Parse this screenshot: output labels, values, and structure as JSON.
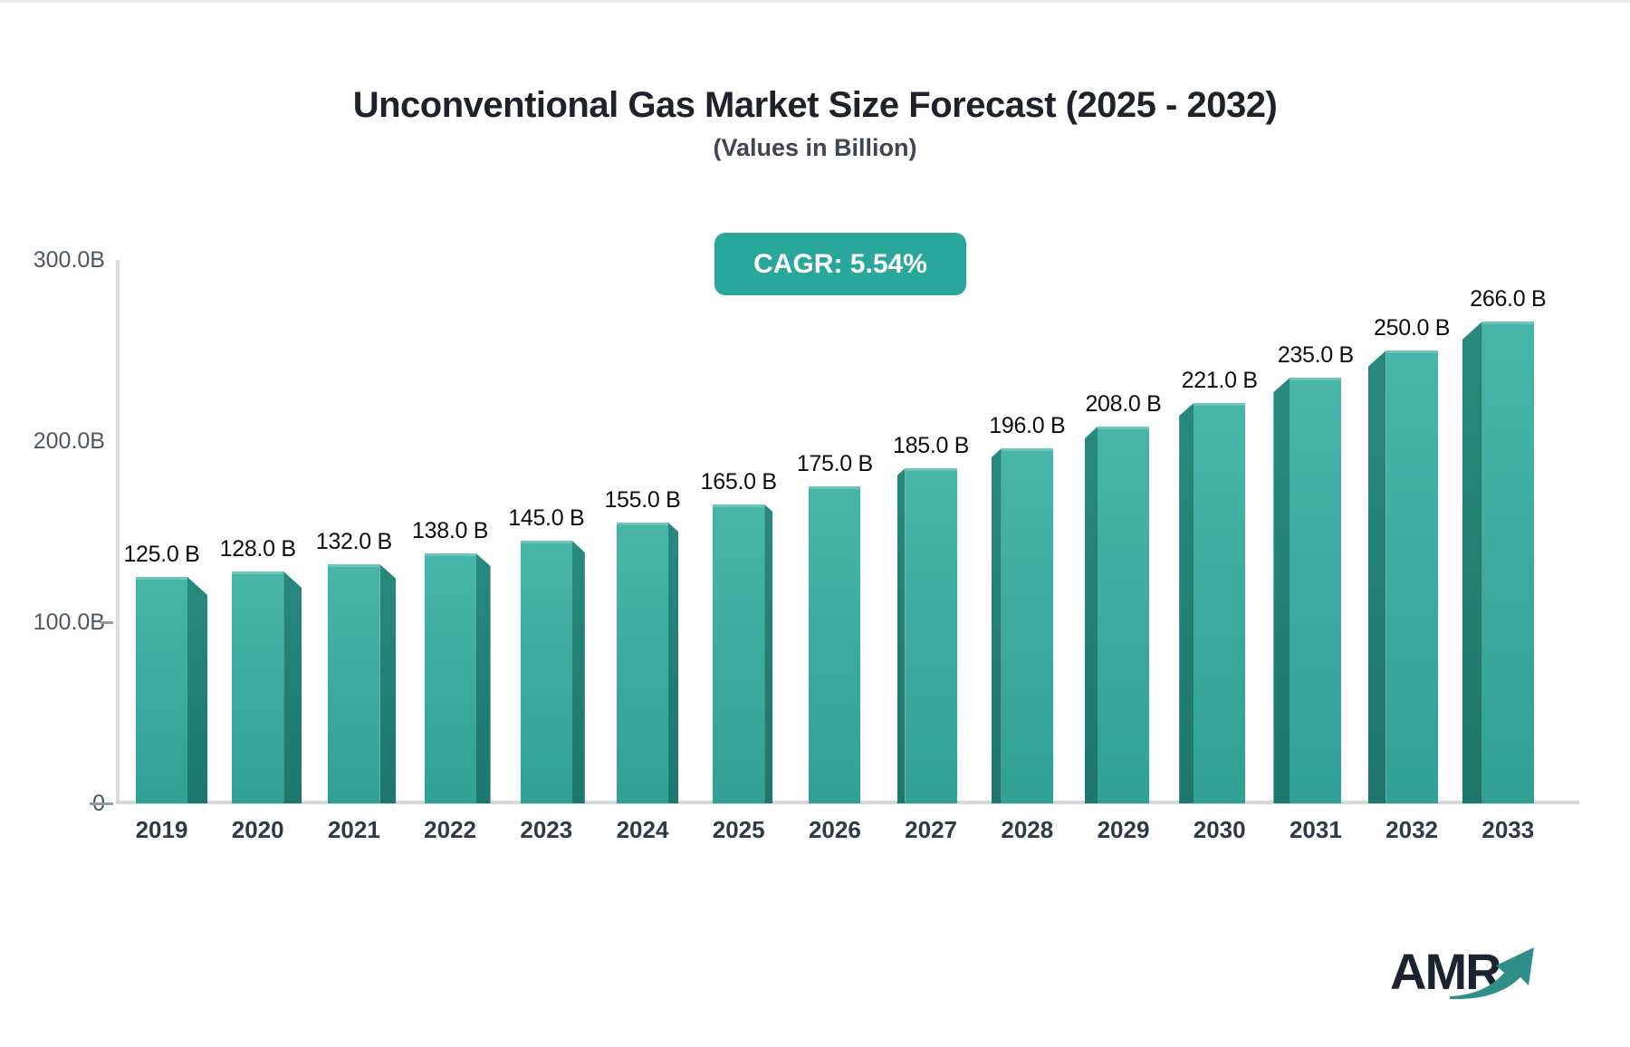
{
  "chart": {
    "title": "Unconventional Gas Market Size Forecast (2025 - 2032)",
    "subtitle": "(Values in Billion)",
    "cagr_label": "CAGR: 5.54%"
  },
  "logo": {
    "text": "AMR",
    "arrow_icon": "trending-up-arrow"
  },
  "colors": {
    "bar_front_light": "#48b5a9",
    "bar_front_dark": "#31a095",
    "bar_side_light": "#27897d",
    "bar_side_dark": "#1d776d",
    "bar_top_highlight": "#68c6ba",
    "badge_background": "#2aa79b",
    "badge_text": "#ffffff",
    "axis_line": "#d8dadf",
    "y_tick_text": "#4d5866",
    "x_label_text": "#2d3a4d",
    "value_label_text": "#0a0d11",
    "title_text": "#1d222b",
    "logo_text": "#1b242e",
    "logo_arrow": "#2f8e88"
  },
  "chart_data": {
    "type": "bar",
    "style": "3d-perspective-bars",
    "title": "Unconventional Gas Market Size Forecast (2025 - 2032)",
    "subtitle": "(Values in Billion)",
    "annotation": "CAGR: 5.54%",
    "xlabel": "",
    "ylabel": "",
    "ylim": [
      0,
      300
    ],
    "grid": false,
    "legend": "none",
    "categories": [
      "2019",
      "2020",
      "2021",
      "2022",
      "2023",
      "2024",
      "2025",
      "2026",
      "2027",
      "2028",
      "2029",
      "2030",
      "2031",
      "2032",
      "2033"
    ],
    "values": [
      125,
      128,
      132,
      138,
      145,
      155,
      165,
      175,
      185,
      196,
      208,
      221,
      235,
      250,
      266
    ],
    "value_labels": [
      "125.0 B",
      "128.0 B",
      "132.0 B",
      "138.0 B",
      "145.0 B",
      "155.0 B",
      "165.0 B",
      "175.0 B",
      "185.0 B",
      "196.0 B",
      "208.0 B",
      "221.0 B",
      "235.0 B",
      "250.0 B",
      "266.0 B"
    ],
    "y_ticks": [
      {
        "label": "300.0B",
        "value": 300,
        "tick_mark": false
      },
      {
        "label": "200.0B",
        "value": 200,
        "tick_mark": false
      },
      {
        "label": "100.0B",
        "value": 100,
        "tick_mark": true
      },
      {
        "label": "0",
        "value": 0,
        "tick_mark": true
      }
    ]
  }
}
